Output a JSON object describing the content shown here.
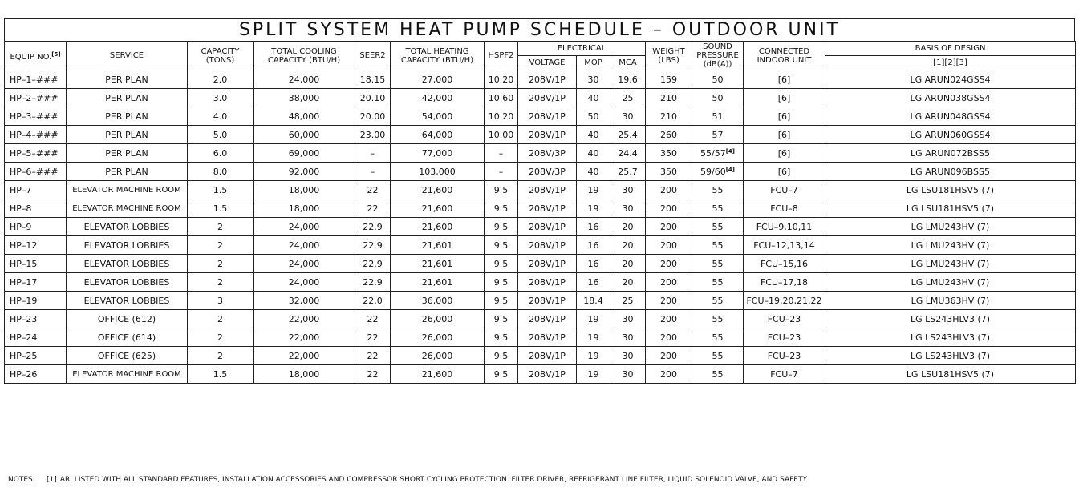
{
  "title": "SPLIT SYSTEM HEAT PUMP SCHEDULE  –  OUTDOOR UNIT",
  "headers": {
    "equip_no": "EQUIP NO.",
    "equip_no_ref": "[5]",
    "service": "SERVICE",
    "capacity_1": "CAPACITY",
    "capacity_2": "(TONS)",
    "total_cooling_1": "TOTAL COOLING",
    "total_cooling_2": "CAPACITY (BTU/H)",
    "seer2": "SEER2",
    "total_heating_1": "TOTAL HEATING",
    "total_heating_2": "CAPACITY (BTU/H)",
    "hspf2": "HSPF2",
    "electrical": "ELECTRICAL",
    "voltage": "VOLTAGE",
    "mop": "MOP",
    "mca": "MCA",
    "weight_1": "WEIGHT",
    "weight_2": "(LBS)",
    "sound_1": "SOUND",
    "sound_2": "PRESSURE",
    "sound_3": "(dB(A))",
    "connected_1": "CONNECTED",
    "connected_2": "INDOOR UNIT",
    "basis": "BASIS OF DESIGN",
    "basis_refs": "[1][2][3]"
  },
  "rows": [
    {
      "equip": "HP–1–###",
      "service": "PER PLAN",
      "cap": "2.0",
      "cool": "24,000",
      "seer": "18.15",
      "heat": "27,000",
      "hspf": "10.20",
      "volt": "208V/1P",
      "mop": "30",
      "mca": "19.6",
      "wt": "159",
      "sound": "50",
      "sound_ref": "",
      "conn": "[6]",
      "basis": "LG ARUN024GSS4"
    },
    {
      "equip": "HP–2–###",
      "service": "PER PLAN",
      "cap": "3.0",
      "cool": "38,000",
      "seer": "20.10",
      "heat": "42,000",
      "hspf": "10.60",
      "volt": "208V/1P",
      "mop": "40",
      "mca": "25",
      "wt": "210",
      "sound": "50",
      "sound_ref": "",
      "conn": "[6]",
      "basis": "LG ARUN038GSS4"
    },
    {
      "equip": "HP–3–###",
      "service": "PER PLAN",
      "cap": "4.0",
      "cool": "48,000",
      "seer": "20.00",
      "heat": "54,000",
      "hspf": "10.20",
      "volt": "208V/1P",
      "mop": "50",
      "mca": "30",
      "wt": "210",
      "sound": "51",
      "sound_ref": "",
      "conn": "[6]",
      "basis": "LG ARUN048GSS4"
    },
    {
      "equip": "HP–4–###",
      "service": "PER PLAN",
      "cap": "5.0",
      "cool": "60,000",
      "seer": "23.00",
      "heat": "64,000",
      "hspf": "10.00",
      "volt": "208V/1P",
      "mop": "40",
      "mca": "25.4",
      "wt": "260",
      "sound": "57",
      "sound_ref": "",
      "conn": "[6]",
      "basis": "LG ARUN060GSS4"
    },
    {
      "equip": "HP–5–###",
      "service": "PER PLAN",
      "cap": "6.0",
      "cool": "69,000",
      "seer": "–",
      "heat": "77,000",
      "hspf": "–",
      "volt": "208V/3P",
      "mop": "40",
      "mca": "24.4",
      "wt": "350",
      "sound": "55/57",
      "sound_ref": "[4]",
      "conn": "[6]",
      "basis": "LG ARUN072BSS5"
    },
    {
      "equip": "HP–6–###",
      "service": "PER PLAN",
      "cap": "8.0",
      "cool": "92,000",
      "seer": "–",
      "heat": "103,000",
      "hspf": "–",
      "volt": "208V/3P",
      "mop": "40",
      "mca": "25.7",
      "wt": "350",
      "sound": "59/60",
      "sound_ref": "[4]",
      "conn": "[6]",
      "basis": "LG ARUN096BSS5"
    },
    {
      "equip": "HP–7",
      "service": "ELEVATOR MACHINE ROOM",
      "cap": "1.5",
      "cool": "18,000",
      "seer": "22",
      "heat": "21,600",
      "hspf": "9.5",
      "volt": "208V/1P",
      "mop": "19",
      "mca": "30",
      "wt": "200",
      "sound": "55",
      "sound_ref": "",
      "conn": "FCU–7",
      "basis": "LG LSU181HSV5 (7)"
    },
    {
      "equip": "HP–8",
      "service": "ELEVATOR MACHINE ROOM",
      "cap": "1.5",
      "cool": "18,000",
      "seer": "22",
      "heat": "21,600",
      "hspf": "9.5",
      "volt": "208V/1P",
      "mop": "19",
      "mca": "30",
      "wt": "200",
      "sound": "55",
      "sound_ref": "",
      "conn": "FCU–8",
      "basis": "LG LSU181HSV5 (7)"
    },
    {
      "equip": "HP–9",
      "service": "ELEVATOR LOBBIES",
      "cap": "2",
      "cool": "24,000",
      "seer": "22.9",
      "heat": "21,600",
      "hspf": "9.5",
      "volt": "208V/1P",
      "mop": "16",
      "mca": "20",
      "wt": "200",
      "sound": "55",
      "sound_ref": "",
      "conn": "FCU–9,10,11",
      "basis": "LG LMU243HV (7)"
    },
    {
      "equip": "HP–12",
      "service": "ELEVATOR LOBBIES",
      "cap": "2",
      "cool": "24,000",
      "seer": "22.9",
      "heat": "21,601",
      "hspf": "9.5",
      "volt": "208V/1P",
      "mop": "16",
      "mca": "20",
      "wt": "200",
      "sound": "55",
      "sound_ref": "",
      "conn": "FCU–12,13,14",
      "basis": "LG LMU243HV (7)"
    },
    {
      "equip": "HP–15",
      "service": "ELEVATOR LOBBIES",
      "cap": "2",
      "cool": "24,000",
      "seer": "22.9",
      "heat": "21,601",
      "hspf": "9.5",
      "volt": "208V/1P",
      "mop": "16",
      "mca": "20",
      "wt": "200",
      "sound": "55",
      "sound_ref": "",
      "conn": "FCU–15,16",
      "basis": "LG LMU243HV (7)"
    },
    {
      "equip": "HP–17",
      "service": "ELEVATOR LOBBIES",
      "cap": "2",
      "cool": "24,000",
      "seer": "22.9",
      "heat": "21,601",
      "hspf": "9.5",
      "volt": "208V/1P",
      "mop": "16",
      "mca": "20",
      "wt": "200",
      "sound": "55",
      "sound_ref": "",
      "conn": "FCU–17,18",
      "basis": "LG LMU243HV (7)"
    },
    {
      "equip": "HP–19",
      "service": "ELEVATOR LOBBIES",
      "cap": "3",
      "cool": "32,000",
      "seer": "22.0",
      "heat": "36,000",
      "hspf": "9.5",
      "volt": "208V/1P",
      "mop": "18.4",
      "mca": "25",
      "wt": "200",
      "sound": "55",
      "sound_ref": "",
      "conn": "FCU–19,20,21,22",
      "basis": "LG LMU363HV (7)"
    },
    {
      "equip": "HP–23",
      "service": "OFFICE (612)",
      "cap": "2",
      "cool": "22,000",
      "seer": "22",
      "heat": "26,000",
      "hspf": "9.5",
      "volt": "208V/1P",
      "mop": "19",
      "mca": "30",
      "wt": "200",
      "sound": "55",
      "sound_ref": "",
      "conn": "FCU–23",
      "basis": "LG LS243HLV3 (7)"
    },
    {
      "equip": "HP–24",
      "service": "OFFICE (614)",
      "cap": "2",
      "cool": "22,000",
      "seer": "22",
      "heat": "26,000",
      "hspf": "9.5",
      "volt": "208V/1P",
      "mop": "19",
      "mca": "30",
      "wt": "200",
      "sound": "55",
      "sound_ref": "",
      "conn": "FCU–23",
      "basis": "LG LS243HLV3 (7)"
    },
    {
      "equip": "HP–25",
      "service": "OFFICE (625)",
      "cap": "2",
      "cool": "22,000",
      "seer": "22",
      "heat": "26,000",
      "hspf": "9.5",
      "volt": "208V/1P",
      "mop": "19",
      "mca": "30",
      "wt": "200",
      "sound": "55",
      "sound_ref": "",
      "conn": "FCU–23",
      "basis": "LG LS243HLV3 (7)"
    },
    {
      "equip": "HP–26",
      "service": "ELEVATOR MACHINE ROOM",
      "cap": "1.5",
      "cool": "18,000",
      "seer": "22",
      "heat": "21,600",
      "hspf": "9.5",
      "volt": "208V/1P",
      "mop": "19",
      "mca": "30",
      "wt": "200",
      "sound": "55",
      "sound_ref": "",
      "conn": "FCU–7",
      "basis": "LG LSU181HSV5 (7)"
    }
  ],
  "notes": {
    "label": "NOTES:",
    "note1_num": "[1]",
    "note1_text": "ARI LISTED WITH ALL STANDARD FEATURES, INSTALLATION ACCESSORIES AND COMPRESSOR SHORT CYCLING PROTECTION. FILTER DRIVER,  REFRIGERANT LINE FILTER, LIQUID SOLENOID VALVE, AND SAFETY"
  }
}
